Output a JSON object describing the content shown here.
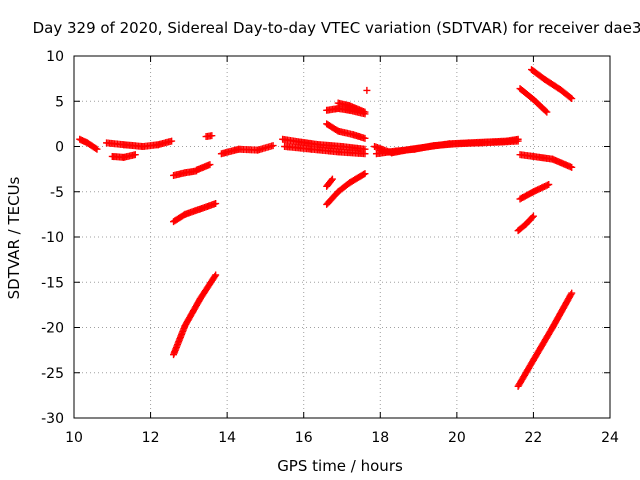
{
  "chart_data": {
    "type": "scatter",
    "title": "Day 329 of 2020, Sidereal Day-to-day VTEC variation (SDTVAR) for receiver dae3",
    "xlabel": "GPS time / hours",
    "ylabel": "SDTVAR / TECUs",
    "xlim": [
      10,
      24
    ],
    "ylim": [
      -30,
      10
    ],
    "xticks": [
      10,
      12,
      14,
      16,
      18,
      20,
      22,
      24
    ],
    "yticks": [
      -30,
      -25,
      -20,
      -15,
      -10,
      -5,
      0,
      5,
      10
    ],
    "grid": true,
    "legend": "none",
    "marker": "+",
    "color": "#ff0000",
    "segments": [
      {
        "x": [
          10.15,
          10.35,
          10.6
        ],
        "y": [
          0.8,
          0.4,
          -0.3
        ]
      },
      {
        "x": [
          10.85,
          11.3,
          11.8,
          12.2,
          12.55
        ],
        "y": [
          0.4,
          0.2,
          0.0,
          0.2,
          0.6
        ]
      },
      {
        "x": [
          11.0,
          11.3,
          11.6
        ],
        "y": [
          -1.1,
          -1.2,
          -0.9
        ]
      },
      {
        "x": [
          12.6,
          12.9,
          13.2
        ],
        "y": [
          -3.2,
          -2.9,
          -2.7
        ]
      },
      {
        "x": [
          13.2,
          13.55
        ],
        "y": [
          -2.6,
          -2.0
        ]
      },
      {
        "x": [
          12.6,
          12.9,
          13.3,
          13.7
        ],
        "y": [
          -8.3,
          -7.5,
          -6.9,
          -6.3
        ]
      },
      {
        "x": [
          12.6,
          12.9,
          13.3,
          13.7
        ],
        "y": [
          -23.0,
          -19.8,
          -16.8,
          -14.2
        ]
      },
      {
        "x": [
          13.45,
          13.6
        ],
        "y": [
          1.1,
          1.2
        ]
      },
      {
        "x": [
          13.85,
          14.3,
          14.8,
          15.2
        ],
        "y": [
          -0.8,
          -0.3,
          -0.4,
          0.1
        ]
      },
      {
        "x": [
          15.45,
          15.9,
          16.4,
          17.0,
          17.6
        ],
        "y": [
          0.8,
          0.5,
          0.2,
          0.0,
          -0.3
        ]
      },
      {
        "x": [
          15.5,
          16.2,
          16.9,
          17.6
        ],
        "y": [
          0.0,
          -0.3,
          -0.6,
          -0.8
        ]
      },
      {
        "x": [
          16.6,
          16.9,
          17.2,
          17.6
        ],
        "y": [
          4.0,
          4.2,
          4.0,
          3.6
        ]
      },
      {
        "x": [
          16.6,
          16.9,
          17.3,
          17.6
        ],
        "y": [
          2.5,
          1.7,
          1.3,
          0.9
        ]
      },
      {
        "x": [
          16.9,
          17.2,
          17.6
        ],
        "y": [
          4.8,
          4.5,
          3.8
        ]
      },
      {
        "x": [
          17.65
        ],
        "y": [
          6.2
        ]
      },
      {
        "x": [
          16.6,
          16.75
        ],
        "y": [
          -4.4,
          -3.6
        ]
      },
      {
        "x": [
          16.6,
          16.9,
          17.2,
          17.6
        ],
        "y": [
          -6.4,
          -5.0,
          -4.0,
          -3.0
        ]
      },
      {
        "x": [
          17.85,
          18.3,
          18.8,
          19.3,
          19.8,
          20.3,
          20.8,
          21.3,
          21.6
        ],
        "y": [
          0.0,
          -0.7,
          -0.3,
          0.0,
          0.3,
          0.4,
          0.5,
          0.6,
          0.8
        ]
      },
      {
        "x": [
          17.9,
          18.4,
          18.9,
          19.4,
          20.0,
          20.6,
          21.2,
          21.6
        ],
        "y": [
          -0.8,
          -0.5,
          -0.3,
          0.1,
          0.3,
          0.4,
          0.5,
          0.6
        ]
      },
      {
        "x": [
          21.95,
          22.3,
          22.7,
          23.0
        ],
        "y": [
          8.5,
          7.4,
          6.3,
          5.3
        ]
      },
      {
        "x": [
          21.65,
          22.0,
          22.35
        ],
        "y": [
          6.4,
          5.2,
          3.8
        ]
      },
      {
        "x": [
          21.65,
          22.0,
          22.5,
          23.0
        ],
        "y": [
          -0.9,
          -1.1,
          -1.4,
          -2.3
        ]
      },
      {
        "x": [
          21.65,
          22.0,
          22.4
        ],
        "y": [
          -5.8,
          -5.0,
          -4.2
        ]
      },
      {
        "x": [
          21.6,
          21.8,
          22.0
        ],
        "y": [
          -9.3,
          -8.6,
          -7.7
        ]
      },
      {
        "x": [
          21.6,
          22.0,
          22.5,
          23.0
        ],
        "y": [
          -26.5,
          -23.6,
          -20.0,
          -16.2
        ]
      }
    ]
  }
}
